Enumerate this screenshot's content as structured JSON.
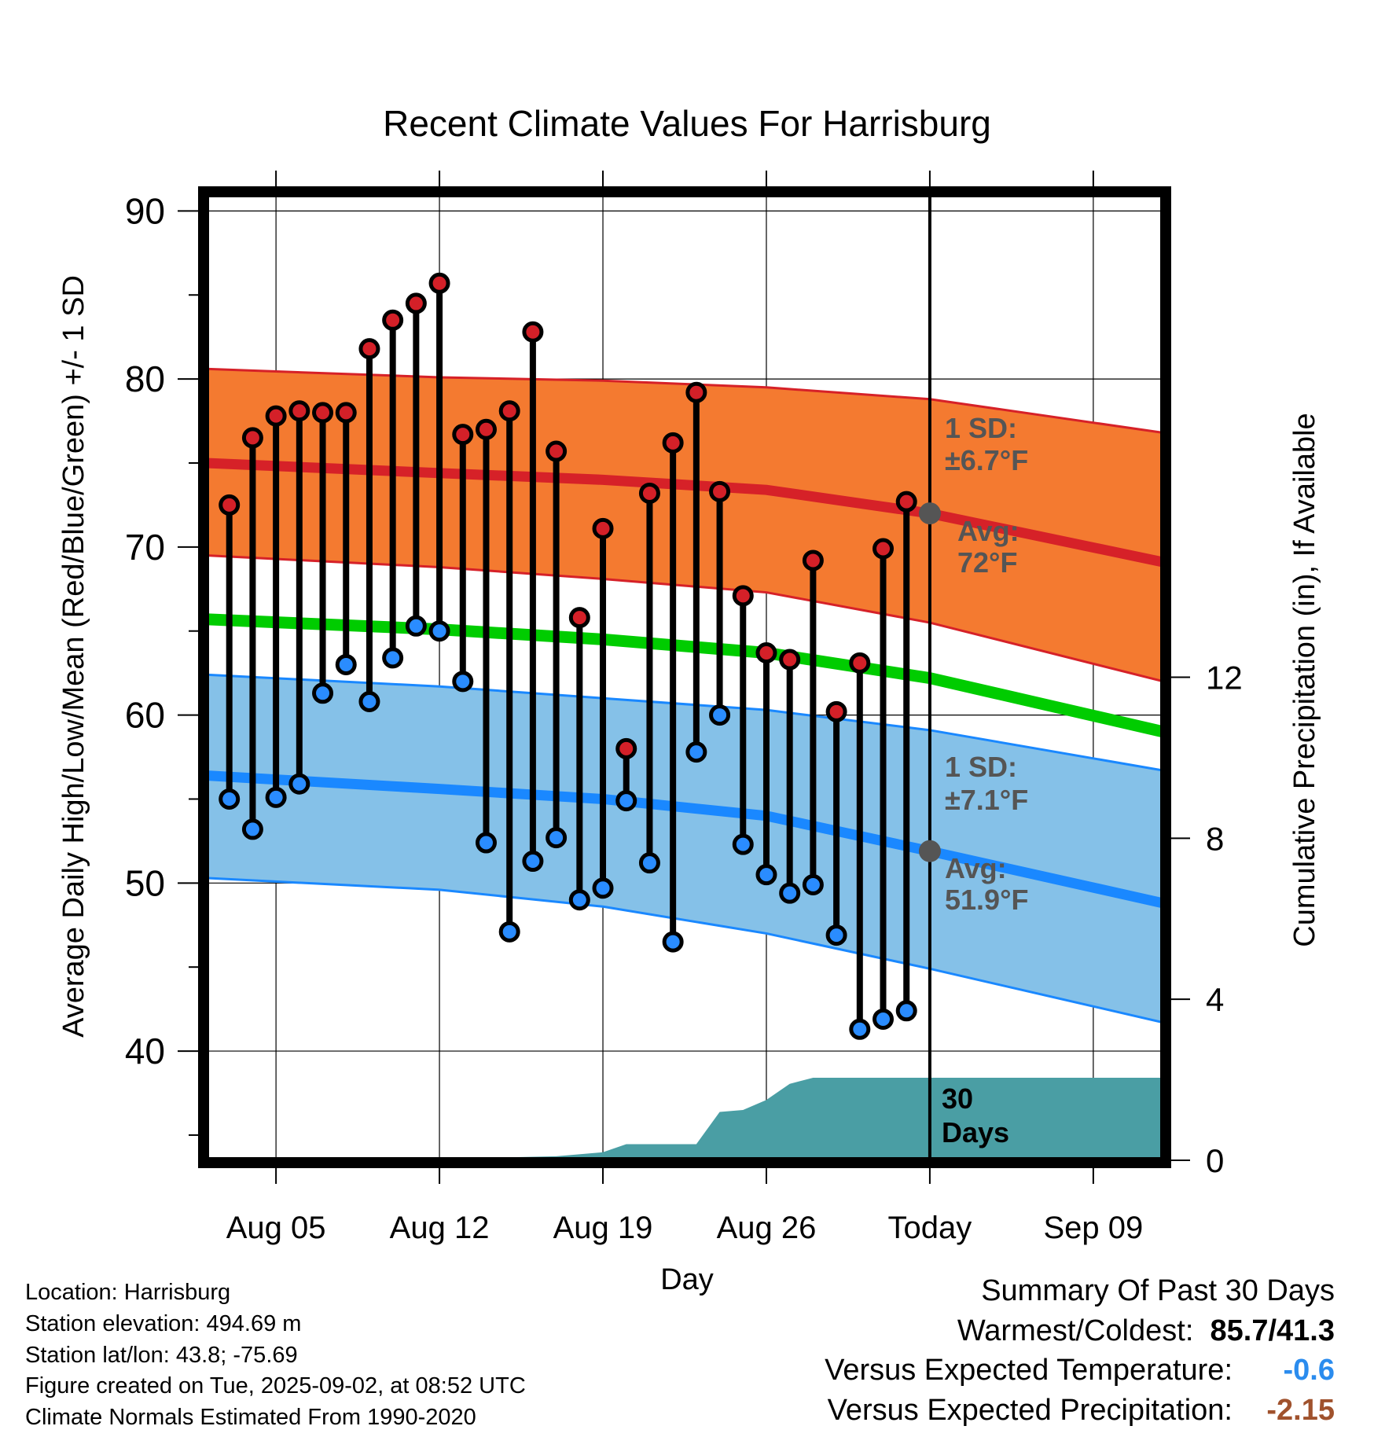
{
  "chart_data": {
    "type": "line",
    "title": "Recent Climate Values For Harrisburg",
    "xlabel": "Day",
    "ylabel": "Average Daily High/Low/Mean (Red/Blue/Green) +/- 1 SD",
    "y2label": "Cumulative Precipitation (in), If Available",
    "ylim": [
      33.5,
      91
    ],
    "y2lim": [
      0,
      24
    ],
    "y_ticks": [
      40,
      50,
      60,
      70,
      80,
      90
    ],
    "y2_ticks": [
      0,
      4,
      8,
      12
    ],
    "x_ticks": [
      "Aug 05",
      "Aug 12",
      "Aug 19",
      "Aug 26",
      "Today",
      "Sep 09"
    ],
    "x_tick_dates": [
      "2025-08-05",
      "2025-08-12",
      "2025-08-19",
      "2025-08-26",
      "2025-09-02",
      "2025-09-09"
    ],
    "today": "2025-09-02",
    "xlim": [
      "2025-08-02",
      "2025-09-12"
    ],
    "dates": [
      "2025-08-03",
      "2025-08-04",
      "2025-08-05",
      "2025-08-06",
      "2025-08-07",
      "2025-08-08",
      "2025-08-09",
      "2025-08-10",
      "2025-08-11",
      "2025-08-12",
      "2025-08-13",
      "2025-08-14",
      "2025-08-15",
      "2025-08-16",
      "2025-08-17",
      "2025-08-18",
      "2025-08-19",
      "2025-08-20",
      "2025-08-21",
      "2025-08-22",
      "2025-08-23",
      "2025-08-24",
      "2025-08-25",
      "2025-08-26",
      "2025-08-27",
      "2025-08-28",
      "2025-08-29",
      "2025-08-30",
      "2025-08-31",
      "2025-09-01"
    ],
    "series": [
      {
        "values": [
          72.5,
          76.5,
          77.8,
          78.1,
          78.0,
          78.0,
          81.8,
          83.5,
          84.5,
          85.7,
          76.7,
          77.0,
          78.1,
          82.8,
          75.7,
          65.8,
          71.1,
          58.0,
          73.2,
          76.2,
          79.2,
          73.3,
          67.1,
          63.7,
          63.3,
          69.2,
          60.2,
          63.1,
          69.9,
          72.7
        ]
      },
      {
        "values": [
          55.0,
          53.2,
          55.1,
          55.9,
          61.3,
          63.0,
          60.8,
          63.4,
          65.3,
          65.0,
          62.0,
          52.4,
          47.1,
          51.3,
          52.7,
          49.0,
          49.7,
          54.9,
          51.2,
          46.5,
          57.8,
          60.0,
          52.3,
          50.5,
          49.4,
          49.9,
          46.9,
          41.3,
          41.9,
          42.4
        ]
      }
    ],
    "normals": {
      "dates": [
        "2025-08-02",
        "2025-08-12",
        "2025-08-19",
        "2025-08-26",
        "2025-09-02",
        "2025-09-12"
      ],
      "high_mean": [
        75.0,
        74.4,
        74.0,
        73.4,
        72.0,
        69.1
      ],
      "high_plus_sd": [
        80.6,
        80.1,
        79.9,
        79.5,
        78.8,
        76.8
      ],
      "high_minus_sd": [
        69.5,
        68.8,
        68.1,
        67.3,
        65.5,
        62.0
      ],
      "mean": [
        65.7,
        65.1,
        64.5,
        63.7,
        62.2,
        59.0
      ],
      "low_mean": [
        56.4,
        55.6,
        55.0,
        54.0,
        51.9,
        48.8
      ],
      "low_plus_sd": [
        62.4,
        61.7,
        61.0,
        60.3,
        59.1,
        56.7
      ],
      "low_minus_sd": [
        50.3,
        49.6,
        48.6,
        47.0,
        44.9,
        41.7
      ]
    },
    "precip": {
      "dates": [
        "2025-08-02",
        "2025-08-12",
        "2025-08-13",
        "2025-08-17",
        "2025-08-19",
        "2025-08-20",
        "2025-08-21",
        "2025-08-23",
        "2025-08-24",
        "2025-08-25",
        "2025-08-26",
        "2025-08-27",
        "2025-08-28",
        "2025-08-29",
        "2025-09-12"
      ],
      "values": [
        0,
        0,
        0.05,
        0.1,
        0.2,
        0.4,
        0.4,
        0.4,
        1.2,
        1.25,
        1.5,
        1.9,
        2.05,
        2.05,
        2.05
      ]
    },
    "annotations": {
      "high_sd": "1 SD:",
      "high_sd_value": "±6.7°F",
      "high_avg": "Avg:",
      "high_avg_value": "72°F",
      "low_sd": "1 SD:",
      "low_sd_value": "±7.1°F",
      "low_avg": "Avg:",
      "low_avg_value": "51.9°F",
      "days_number": "30",
      "days_word": "Days"
    },
    "colors": {
      "high_band": "#f47a30",
      "high_line": "#d62128",
      "mean_line": "#00cc00",
      "low_band": "#85c1e8",
      "low_line": "#1a88ff",
      "precip": "#4a9ea4",
      "high_marker": "#d42028",
      "low_marker": "#2a8cff",
      "today_marker": "#555555"
    }
  },
  "info": {
    "location": "Location: Harrisburg",
    "elevation": "Station elevation: 494.69 m",
    "latlon": "Station lat/lon: 43.8; -75.69",
    "created": "Figure created on Tue, 2025-09-02, at 08:52 UTC",
    "normals": "Climate Normals Estimated From 1990-2020"
  },
  "summary": {
    "title": "Summary Of Past 30 Days",
    "warmest_label": "Warmest/Coldest:",
    "warmest_value": "85.7/41.3",
    "temp_label": "Versus Expected Temperature:",
    "temp_value": "-0.6",
    "temp_color": "#2b8cee",
    "precip_label": "Versus Expected Precipitation:",
    "precip_value": "-2.15",
    "precip_color": "#a0522d"
  }
}
